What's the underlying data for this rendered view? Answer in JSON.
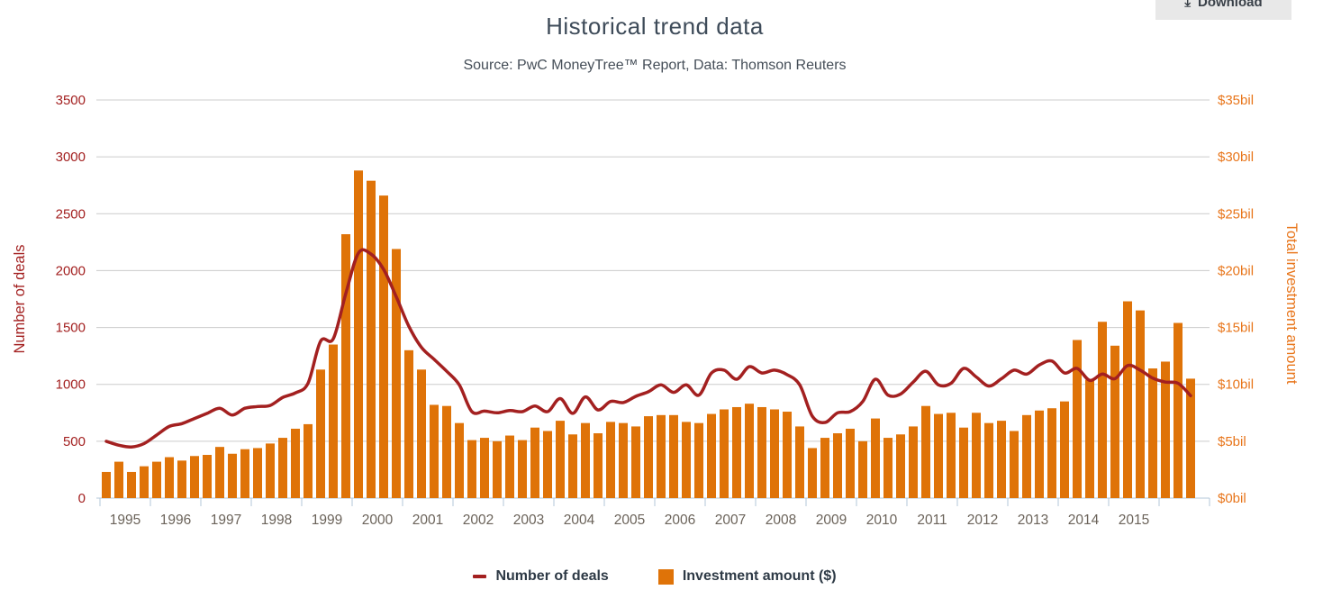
{
  "header": {
    "title": "Historical trend data",
    "subtitle": "Source: PwC MoneyTree™ Report, Data: Thomson Reuters",
    "download_label": "Download",
    "download_icon": "download-icon"
  },
  "chart_data": {
    "type": "combo-bar-line",
    "x": {
      "frequency": "quarterly",
      "start": "1995 Q1",
      "end": "2016 Q3"
    },
    "x_axis": {
      "year_labels": [
        "1995",
        "1996",
        "1997",
        "1998",
        "1999",
        "2000",
        "2001",
        "2002",
        "2003",
        "2004",
        "2005",
        "2006",
        "2007",
        "2008",
        "2009",
        "2010",
        "2011",
        "2012",
        "2013",
        "2014",
        "2015"
      ],
      "axis_color": "#b3c7d9",
      "label_color": "#6b635a"
    },
    "left_axis": {
      "title": "Number of deals",
      "tick_labels": [
        "3500",
        "3000",
        "2500",
        "2000",
        "1500",
        "1000",
        "500",
        "0"
      ],
      "range": [
        0,
        3500
      ],
      "color": "#a32020"
    },
    "right_axis": {
      "title": "Total investment amount",
      "tick_labels": [
        "$35bil",
        "$30bil",
        "$25bil",
        "$20bil",
        "$15bil",
        "$10bil",
        "$5bil",
        "$0bil"
      ],
      "range": [
        0,
        35
      ],
      "color": "#e8751a"
    },
    "grid_color": "#cccccc",
    "legend_position": "bottom",
    "series": [
      {
        "name": "Number of deals",
        "type": "line",
        "axis": "left",
        "color": "#a32020",
        "values": [
          500,
          465,
          450,
          480,
          555,
          630,
          655,
          700,
          745,
          790,
          730,
          790,
          805,
          815,
          885,
          925,
          1010,
          1380,
          1400,
          1800,
          2155,
          2145,
          2010,
          1770,
          1510,
          1325,
          1220,
          1115,
          995,
          760,
          765,
          750,
          770,
          760,
          810,
          760,
          875,
          745,
          890,
          775,
          850,
          840,
          895,
          935,
          995,
          930,
          995,
          905,
          1100,
          1125,
          1045,
          1155,
          1100,
          1125,
          1085,
          995,
          720,
          665,
          750,
          760,
          850,
          1045,
          905,
          915,
          1020,
          1115,
          995,
          1010,
          1140,
          1065,
          985,
          1050,
          1125,
          1090,
          1170,
          1205,
          1100,
          1140,
          1035,
          1090,
          1050,
          1165,
          1125,
          1055,
          1020,
          1010,
          900
        ]
      },
      {
        "name": "Investment amount ($)",
        "type": "bar",
        "axis": "right",
        "unit": "$bil",
        "color": "#df7308",
        "values": [
          2.3,
          3.2,
          2.3,
          2.8,
          3.2,
          3.6,
          3.3,
          3.7,
          3.8,
          4.5,
          3.9,
          4.3,
          4.4,
          4.8,
          5.3,
          6.1,
          6.5,
          11.3,
          13.5,
          23.2,
          28.8,
          27.9,
          26.6,
          21.9,
          13.0,
          11.3,
          8.2,
          8.1,
          6.6,
          5.1,
          5.3,
          5.0,
          5.5,
          5.1,
          6.2,
          5.9,
          6.8,
          5.6,
          6.6,
          5.7,
          6.7,
          6.6,
          6.3,
          7.2,
          7.3,
          7.3,
          6.7,
          6.6,
          7.4,
          7.8,
          8.0,
          8.3,
          8.0,
          7.8,
          7.6,
          6.3,
          4.4,
          5.3,
          5.7,
          6.1,
          5.0,
          7.0,
          5.3,
          5.6,
          6.3,
          8.1,
          7.4,
          7.5,
          6.2,
          7.5,
          6.6,
          6.8,
          5.9,
          7.3,
          7.7,
          7.9,
          8.5,
          13.9,
          10.4,
          15.5,
          13.4,
          17.3,
          16.5,
          11.4,
          12.0,
          15.4,
          10.5
        ]
      }
    ]
  },
  "legend": {
    "items": [
      {
        "label": "Number of deals",
        "swatch": "line"
      },
      {
        "label": "Investment amount ($)",
        "swatch": "box"
      }
    ]
  }
}
